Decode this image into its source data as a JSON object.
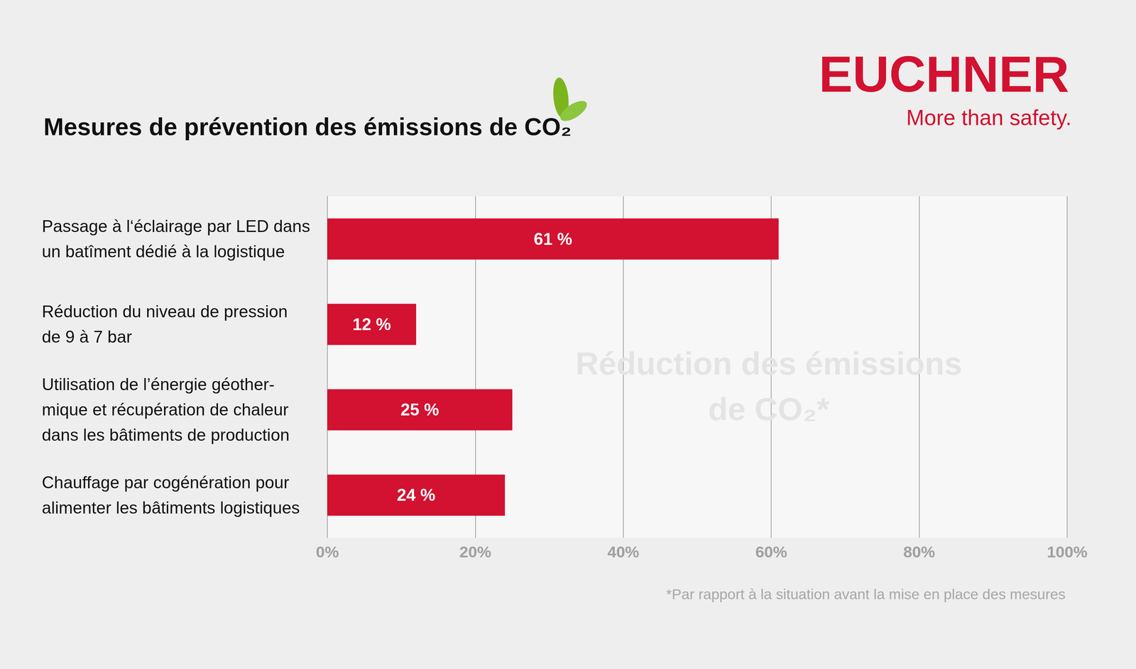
{
  "chart_data": {
    "type": "bar",
    "title": "Mesures de prévention des émissions de CO₂",
    "logo": "EUCHNER",
    "tagline": "More than safety.",
    "annotation": "Réduction des émissions\nde CO₂*",
    "footnote": "*Par rapport à la situation avant la mise en place des mesures",
    "orientation": "horizontal",
    "categories": [
      "Passage à l‘éclairage par LED dans\nun batîment dédié à la logistique",
      "Réduction du niveau de pression\nde 9 à 7 bar",
      "Utilisation de l’énergie géother-\nmique et récupération de chaleur\ndans les bâtiments de production",
      "Chauffage par cogénération pour\nalimenter les bâtiments logistiques"
    ],
    "values": [
      61,
      12,
      25,
      24
    ],
    "value_labels": [
      "61 %",
      "12 %",
      "25 %",
      "24 %"
    ],
    "color": "#d31130",
    "data_labels": true,
    "grid": true,
    "xlim": [
      0,
      100
    ],
    "xticks": [
      {
        "value": 0,
        "label": "0%"
      },
      {
        "value": 20,
        "label": "20%"
      },
      {
        "value": 40,
        "label": "40%"
      },
      {
        "value": 60,
        "label": "60%"
      },
      {
        "value": 80,
        "label": "80%"
      },
      {
        "value": 100,
        "label": "100%"
      }
    ]
  }
}
